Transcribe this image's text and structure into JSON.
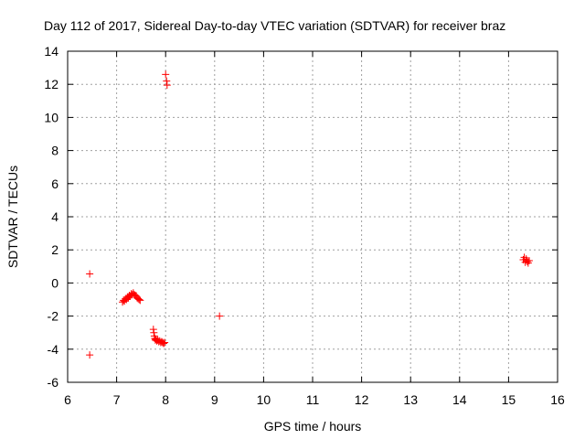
{
  "chart_data": {
    "type": "scatter",
    "title": "Day 112 of 2017, Sidereal Day-to-day VTEC variation (SDTVAR) for receiver braz",
    "xlabel": "GPS time / hours",
    "ylabel": "SDTVAR / TECUs",
    "xlim": [
      6,
      16
    ],
    "ylim": [
      -6,
      14
    ],
    "xticks": [
      6,
      7,
      8,
      9,
      10,
      11,
      12,
      13,
      14,
      15,
      16
    ],
    "yticks": [
      -6,
      -4,
      -2,
      0,
      2,
      4,
      6,
      8,
      10,
      12,
      14
    ],
    "grid": true,
    "marker": "+",
    "marker_color": "#ff0000",
    "series": [
      {
        "name": "braz",
        "points": [
          [
            6.45,
            0.55
          ],
          [
            6.45,
            -4.35
          ],
          [
            7.12,
            -1.15
          ],
          [
            7.14,
            -1.05
          ],
          [
            7.16,
            -1.1
          ],
          [
            7.18,
            -0.95
          ],
          [
            7.2,
            -1.0
          ],
          [
            7.22,
            -0.85
          ],
          [
            7.24,
            -0.9
          ],
          [
            7.26,
            -0.75
          ],
          [
            7.28,
            -0.8
          ],
          [
            7.3,
            -0.65
          ],
          [
            7.32,
            -0.7
          ],
          [
            7.34,
            -0.6
          ],
          [
            7.36,
            -0.7
          ],
          [
            7.38,
            -0.75
          ],
          [
            7.4,
            -0.8
          ],
          [
            7.42,
            -0.9
          ],
          [
            7.44,
            -0.95
          ],
          [
            7.46,
            -1.0
          ],
          [
            7.48,
            -1.05
          ],
          [
            7.75,
            -2.8
          ],
          [
            7.76,
            -3.0
          ],
          [
            7.77,
            -3.2
          ],
          [
            7.78,
            -3.35
          ],
          [
            7.79,
            -3.45
          ],
          [
            7.8,
            -3.4
          ],
          [
            7.82,
            -3.5
          ],
          [
            7.84,
            -3.45
          ],
          [
            7.86,
            -3.55
          ],
          [
            7.88,
            -3.5
          ],
          [
            7.9,
            -3.6
          ],
          [
            7.92,
            -3.55
          ],
          [
            7.94,
            -3.6
          ],
          [
            7.96,
            -3.65
          ],
          [
            7.98,
            -3.6
          ],
          [
            8.0,
            12.6
          ],
          [
            8.02,
            12.2
          ],
          [
            8.03,
            11.95
          ],
          [
            9.1,
            -2.0
          ],
          [
            15.3,
            1.4
          ],
          [
            15.32,
            1.55
          ],
          [
            15.34,
            1.25
          ],
          [
            15.36,
            1.45
          ],
          [
            15.38,
            1.3
          ],
          [
            15.4,
            1.2
          ],
          [
            15.42,
            1.35
          ]
        ]
      }
    ]
  }
}
